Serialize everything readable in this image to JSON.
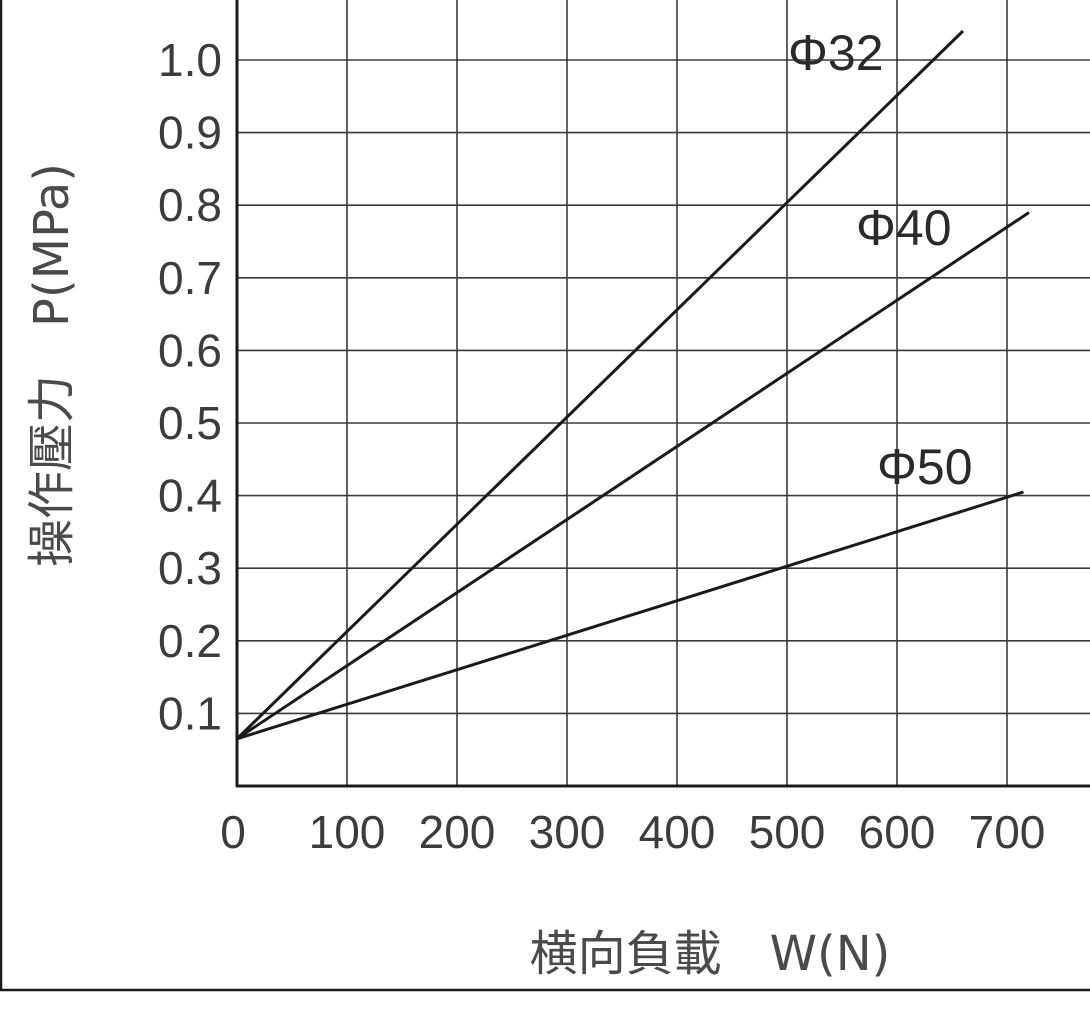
{
  "chart_data": {
    "type": "line",
    "xlabel": "横向負載　W(N)",
    "ylabel": "操作壓力　P(MPa)",
    "xlim": [
      0,
      800
    ],
    "ylim": [
      0,
      1.1
    ],
    "x_ticks": [
      "0",
      "100",
      "200",
      "300",
      "400",
      "500",
      "600",
      "700"
    ],
    "y_ticks": [
      "0.1",
      "0.2",
      "0.3",
      "0.4",
      "0.5",
      "0.6",
      "0.7",
      "0.8",
      "0.9",
      "1.0"
    ],
    "grid": true,
    "series": [
      {
        "name": "Φ32",
        "x": [
          0,
          660
        ],
        "y": [
          0.065,
          1.04
        ]
      },
      {
        "name": "Φ40",
        "x": [
          0,
          720
        ],
        "y": [
          0.065,
          0.79
        ]
      },
      {
        "name": "Φ50",
        "x": [
          0,
          715
        ],
        "y": [
          0.065,
          0.405
        ]
      }
    ]
  }
}
